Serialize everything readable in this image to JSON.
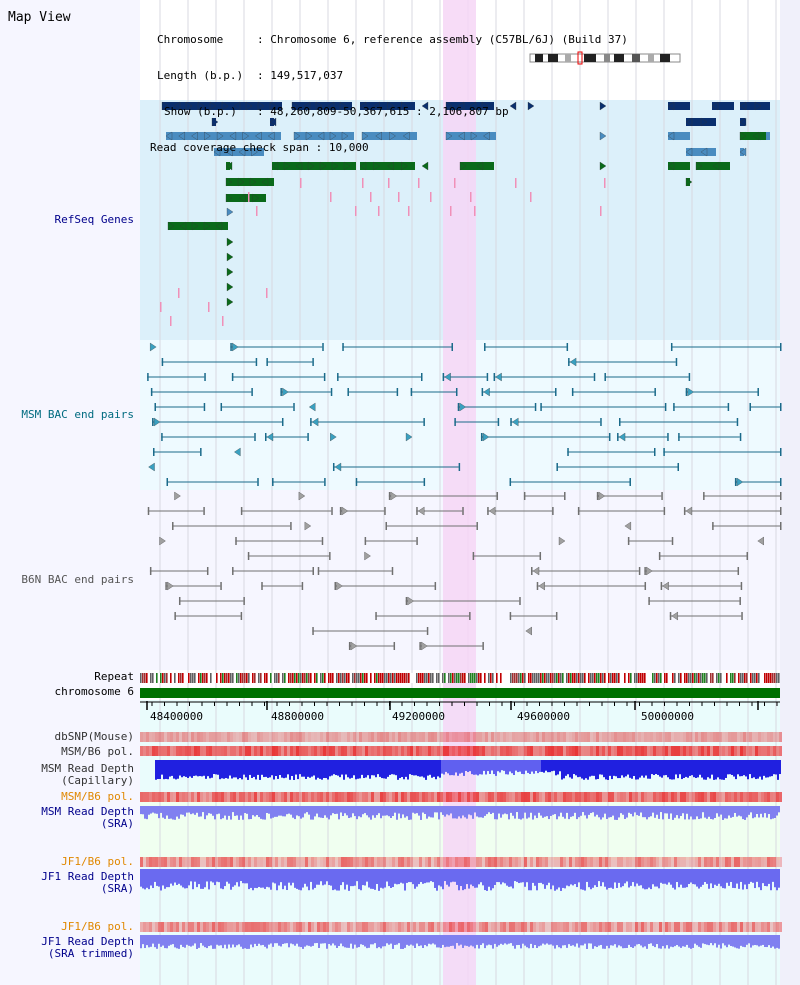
{
  "header": {
    "map_view_title": "Map View",
    "chromosome_key": "Chromosome",
    "chromosome_value": "Chromosome 6, reference assembly (C57BL/6J) (Build 37)",
    "length_key": "Length (b.p.)",
    "length_value": "149,517,037",
    "show_key": "Show (b.p.)",
    "show_value": "48,260,809-50,367,615 : 2,106,807 bp",
    "coverage_key": "Read coverage check span",
    "coverage_value": "10,000"
  },
  "tracks": {
    "refseq_genes": "RefSeq Genes",
    "msm_bac": "MSM BAC end pairs",
    "b6n_bac": "B6N BAC end pairs",
    "repeat": "Repeat",
    "chromosome": "chromosome 6",
    "dbsnp": "dbSNP(Mouse)",
    "msm_b6_pol_1": "MSM/B6 pol.",
    "msm_read_depth_cap_1": "MSM Read Depth",
    "msm_read_depth_cap_2": "(Capillary)",
    "msm_b6_pol_2": "MSM/B6 pol.",
    "msm_read_depth_sra_1": "MSM Read Depth",
    "msm_read_depth_sra_2": "(SRA)",
    "jf1_b6_pol_1": "JF1/B6 pol.",
    "jf1_read_depth_1": "JF1 Read Depth",
    "jf1_read_depth_2": "(SRA)",
    "jf1_b6_pol_2": "JF1/B6 pol.",
    "jf1_read_depth_trim_1": "JF1 Read Depth",
    "jf1_read_depth_trim_2": "(SRA trimmed)"
  },
  "axis": {
    "ticks": [
      "48400000",
      "48800000",
      "49200000",
      "49600000",
      "50000000"
    ]
  },
  "colors": {
    "gene_dark": "#0a2f6e",
    "gene_mid": "#4a8cc0",
    "gene_green": "#0a6a1a",
    "gene_pink": "#f090b8",
    "refseq_bg": "#dcf0fa",
    "msm_bg": "#eefaff",
    "b6n_bg": "#f6f6ff",
    "highlight": "#f6d6f6",
    "msm_line": "#1a6a8a",
    "b6n_line": "#707070",
    "depth_blue": "#2020e0",
    "depth_lavender": "#8080f0",
    "label_navy": "#00008b",
    "label_teal": "#006b80",
    "label_orange": "#e08800"
  }
}
